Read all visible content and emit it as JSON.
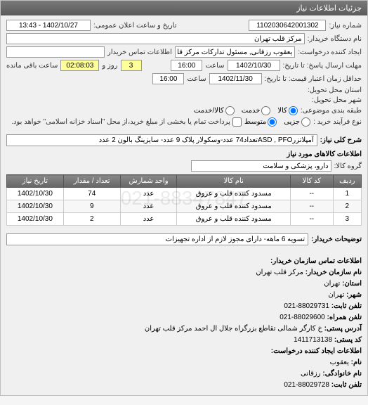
{
  "header": {
    "title": "جزئیات اطلاعات نیاز"
  },
  "form": {
    "number_label": "شماره نیاز:",
    "number_value": "1102030642001302",
    "announce_label": "تاریخ و ساعت اعلان عمومی:",
    "announce_value": "1402/10/27 - 13:43",
    "org_label": "نام دستگاه خریدار:",
    "org_value": "مرکز قلب تهران",
    "requester_label": "ایجاد کننده درخواست:",
    "requester_value": "یعقوب رزقانی, مسئول تدارکات مرکز قلب تهران",
    "contact_label": "اطلاعات تماس خریدار",
    "contact_value": "",
    "deadline_label": "مهلت ارسال پاسخ: تا تاریخ:",
    "deadline_date": "1402/10/30",
    "deadline_time_lbl": "ساعت",
    "deadline_time": "16:00",
    "remain_lbl1": "",
    "remain_days": "3",
    "remain_lbl2": "روز و",
    "remain_time": "02:08:03",
    "remain_lbl3": "ساعت باقی مانده",
    "validity_label": "حداقل زمان اعتبار قیمت: تا تاریخ:",
    "validity_date": "1402/11/30",
    "validity_time_lbl": "ساعت",
    "validity_time": "16:00",
    "delivery_label": "استان محل تحویل:",
    "delivery_city_label": "شهر محل تحویل:",
    "category_label": "طبقه بندی موضوعی:",
    "radio_goods": "کالا",
    "radio_service": "خدمت",
    "radio_goodservice": "کالا/خدمت",
    "process_label": "نوع فرآیند خرید :",
    "radio_minor": "جزیی",
    "radio_medium": "متوسط",
    "process_note": "پرداخت تمام یا بخشی از مبلغ خرید،از محل \"اسناد خزانه اسلامی\" خواهد بود.",
    "desc_title": "شرح کلی نیاز:",
    "desc_value": "آمپلاتزرASD , PFOتعداد74 عدد-وسکولار پلاک 9 عدد- سایزینگ بالون 2 عدد",
    "items_title": "اطلاعات کالاهای مورد نیاز",
    "group_label": "گروه کالا:",
    "group_value": "دارو، پزشکی و سلامت"
  },
  "table": {
    "columns": [
      "ردیف",
      "کد کالا",
      "نام کالا",
      "واحد شمارش",
      "تعداد / مقدار",
      "تاریخ نیاز"
    ],
    "rows": [
      [
        "1",
        "--",
        "مسدود کننده قلب و عروق",
        "عدد",
        "74",
        "1402/10/30"
      ],
      [
        "2",
        "--",
        "مسدود کننده قلب و عروق",
        "عدد",
        "9",
        "1402/10/30"
      ],
      [
        "3",
        "--",
        "مسدود کننده قلب و عروق",
        "عدد",
        "2",
        "1402/10/30"
      ]
    ],
    "col_widths": [
      "8%",
      "12%",
      "32%",
      "16%",
      "16%",
      "16%"
    ]
  },
  "buyer": {
    "notes_label": "توضیحات خریدار:",
    "notes_value": "تسویه 6 ماهه- دارای مجوز لازم از اداره تجهیزات"
  },
  "contact": {
    "title": "اطلاعات تماس سازمان خریدار:",
    "org_name_lbl": "نام سازمان خریدار:",
    "org_name": "مرکز قلب تهران",
    "province_lbl": "استان:",
    "province": "تهران",
    "city_lbl": "شهر:",
    "city": "تهران",
    "phone_lbl": "تلفن ثابت:",
    "phone": "88029731-021",
    "fax_lbl": "تلفن همراه:",
    "fax": "88029600-021",
    "address_lbl": "آدرس پستی:",
    "address": "خ کارگر شمالی تقاطع بزرگراه جلال ال احمد مرکز قلب تهران",
    "postal_lbl": "کد پستی:",
    "postal": "1411713138",
    "creator_title": "اطلاعات ایجاد کننده درخواست:",
    "name_lbl": "نام:",
    "name": "یعقوب",
    "family_lbl": "نام خانوادگی:",
    "family": "رزقانی",
    "tel_lbl": "تلفن ثابت:",
    "tel": "88029728-021"
  },
  "watermark": "021-88347847",
  "colors": {
    "header_bg": "#6a6a6a",
    "panel_bg": "#f0f0f0",
    "th_bg": "#777777",
    "border": "#999999",
    "yellow": "#ffff99"
  }
}
